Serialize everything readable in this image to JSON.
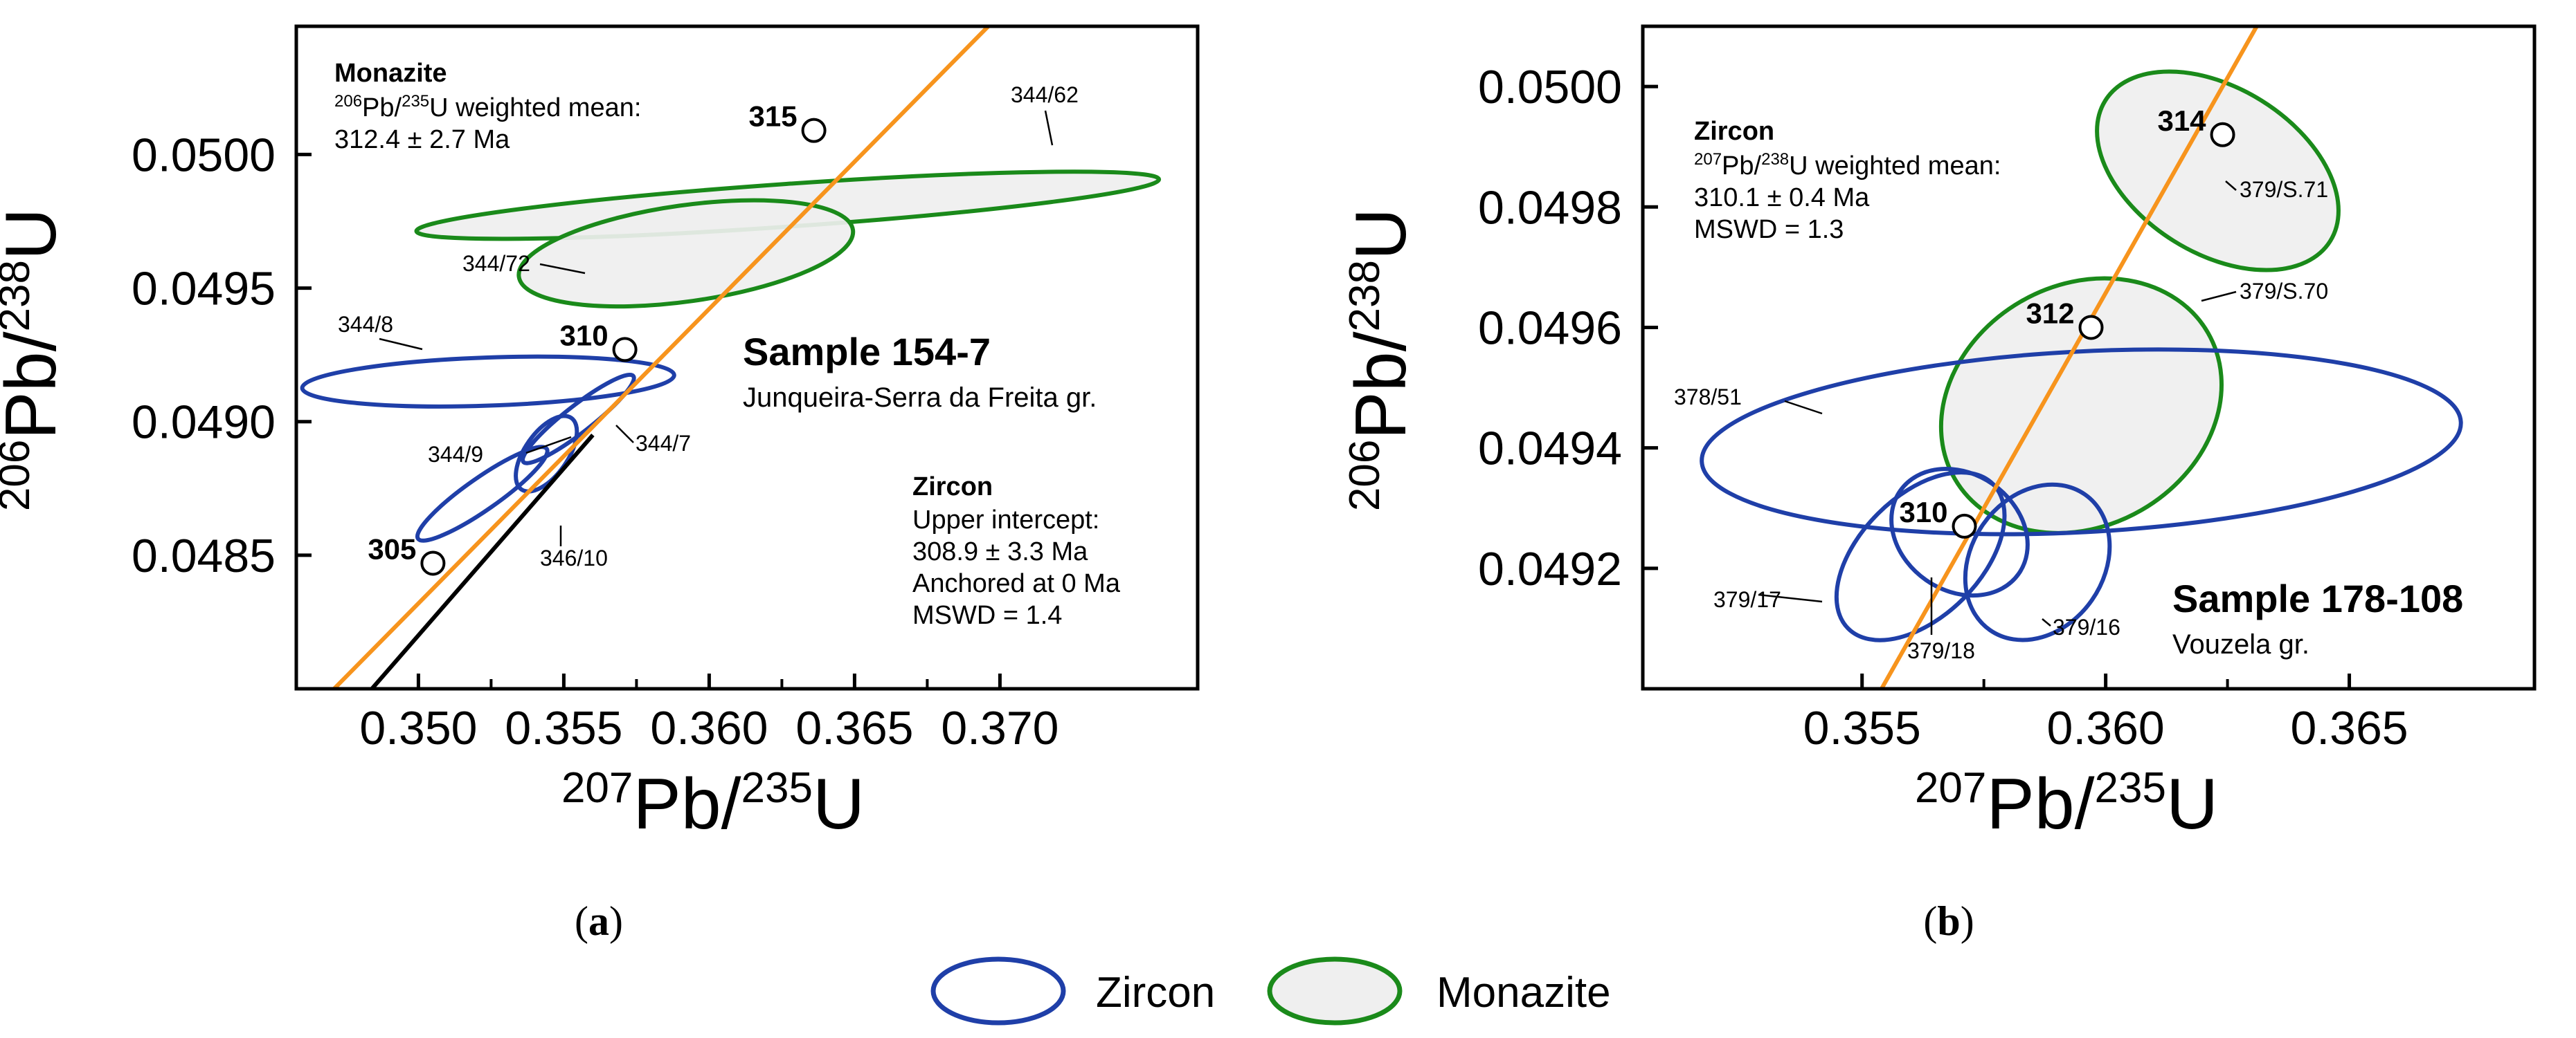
{
  "chart_data": [
    {
      "type": "scatter",
      "panel_label": "a",
      "sample": "Sample 154-7",
      "group": "Junqueira-Serra da Freita gr.",
      "xlabel": {
        "pre": "207",
        "base": "Pb/",
        "sup2": "235",
        "post": "U"
      },
      "ylabel": {
        "pre": "206",
        "base": "Pb/",
        "sup2": "238",
        "post": "U"
      },
      "xlim": [
        0.3458,
        0.3768
      ],
      "ylim": [
        0.048,
        0.05048
      ],
      "x_ticks": [
        0.35,
        0.355,
        0.36,
        0.365,
        0.37
      ],
      "x_tick_labels": [
        "0.350",
        "0.355",
        "0.360",
        "0.365",
        "0.370"
      ],
      "y_ticks": [
        0.0485,
        0.049,
        0.0495,
        0.05
      ],
      "y_tick_labels": [
        "0.0485",
        "0.0490",
        "0.0495",
        "0.0500"
      ],
      "concordia": {
        "color": "#f7941d",
        "points": [
          [
            0.3471,
            0.048
          ],
          [
            0.3696,
            0.05048
          ]
        ]
      },
      "discordia": {
        "color": "#000000",
        "points": [
          [
            0.3484,
            0.048
          ],
          [
            0.356,
            0.04895
          ]
        ]
      },
      "age_markers": [
        {
          "label": "315",
          "x": 0.3636,
          "y": 0.05009
        },
        {
          "label": "310",
          "x": 0.3571,
          "y": 0.04927
        },
        {
          "label": "305",
          "x": 0.3505,
          "y": 0.04847
        }
      ],
      "ellipses": [
        {
          "label": "344/62",
          "mineral": "Monazite",
          "cx": 0.3627,
          "cy": 0.04981,
          "rx": 0.0128,
          "ry": 8e-05,
          "rot": -4
        },
        {
          "label": "344/72",
          "mineral": "Monazite",
          "cx": 0.3592,
          "cy": 0.04963,
          "rx": 0.0058,
          "ry": 0.00018,
          "rot": -8
        },
        {
          "label": "344/8",
          "mineral": "Zircon",
          "cx": 0.3524,
          "cy": 0.04915,
          "rx": 0.0064,
          "ry": 9e-05,
          "rot": -2
        },
        {
          "label": "344/7",
          "mineral": "Zircon",
          "cx": 0.3555,
          "cy": 0.04901,
          "rx": 0.0024,
          "ry": 5e-05,
          "rot": -38
        },
        {
          "label": "344/9",
          "mineral": "Zircon",
          "cx": 0.3544,
          "cy": 0.04888,
          "rx": 0.0015,
          "ry": 8e-05,
          "rot": -55
        },
        {
          "label": "346/10",
          "mineral": "Zircon",
          "cx": 0.3522,
          "cy": 0.04873,
          "rx": 0.0027,
          "ry": 6e-05,
          "rot": -35
        }
      ],
      "annotations": {
        "monazite_title": "Monazite",
        "monazite_l1": {
          "pre": "206",
          "mid": "Pb/",
          "sup2": "235",
          "post": "U weighted mean:"
        },
        "monazite_l2": "312.4 ± 2.7 Ma",
        "zircon_title": "Zircon",
        "zircon_l1": "Upper intercept:",
        "zircon_l2": "308.9 ± 3.3 Ma",
        "zircon_l3": "Anchored at 0 Ma",
        "zircon_l4": "MSWD = 1.4"
      }
    },
    {
      "type": "scatter",
      "panel_label": "b",
      "sample": "Sample 178-108",
      "group": "Vouzela gr.",
      "xlabel": {
        "pre": "207",
        "base": "Pb/",
        "sup2": "235",
        "post": "U"
      },
      "ylabel": {
        "pre": "206",
        "base": "Pb/",
        "sup2": "238",
        "post": "U"
      },
      "xlim": [
        0.3505,
        0.3688
      ],
      "ylim": [
        0.049,
        0.0501
      ],
      "x_ticks": [
        0.355,
        0.36,
        0.365
      ],
      "x_tick_labels": [
        "0.355",
        "0.360",
        "0.365"
      ],
      "y_ticks": [
        0.0492,
        0.0494,
        0.0496,
        0.0498,
        0.05
      ],
      "y_tick_labels": [
        "0.0492",
        "0.0494",
        "0.0496",
        "0.0498",
        "0.0500"
      ],
      "concordia": {
        "color": "#f7941d",
        "points": [
          [
            0.3554,
            0.049
          ],
          [
            0.3631,
            0.0501
          ]
        ]
      },
      "age_markers": [
        {
          "label": "314",
          "x": 0.3624,
          "y": 0.04992
        },
        {
          "label": "312",
          "x": 0.3597,
          "y": 0.0496
        },
        {
          "label": "310",
          "x": 0.3571,
          "y": 0.04927
        }
      ],
      "ellipses": [
        {
          "label": "379/S.71",
          "mineral": "Monazite",
          "cx": 0.3623,
          "cy": 0.04986,
          "rx": 0.0017,
          "ry": 0.00022,
          "rot": -58
        },
        {
          "label": "379/S.70",
          "mineral": "Monazite",
          "cx": 0.3595,
          "cy": 0.04947,
          "rx": 0.003,
          "ry": 0.0002,
          "rot": -30
        },
        {
          "label": "378/51",
          "mineral": "Zircon",
          "cx": 0.3595,
          "cy": 0.04941,
          "rx": 0.0078,
          "ry": 0.00015,
          "rot": -3
        },
        {
          "label": "379/17",
          "mineral": "Zircon",
          "cx": 0.3562,
          "cy": 0.04922,
          "rx": 0.0021,
          "ry": 0.0001,
          "rot": -45
        },
        {
          "label": "379/18",
          "mineral": "Zircon",
          "cx": 0.357,
          "cy": 0.04926,
          "rx": 0.0012,
          "ry": 0.00012,
          "rot": -55
        },
        {
          "label": "379/16",
          "mineral": "Zircon",
          "cx": 0.3586,
          "cy": 0.04921,
          "rx": 0.0017,
          "ry": 0.00011,
          "rot": -55
        }
      ],
      "annotations": {
        "zircon_title": "Zircon",
        "zircon_l1": {
          "pre": "207",
          "mid": "Pb/",
          "sup2": "238",
          "post": "U weighted mean:"
        },
        "zircon_l2": "310.1 ± 0.4 Ma",
        "zircon_l3": "MSWD = 1.3"
      }
    }
  ],
  "legend": {
    "items": [
      {
        "label": "Zircon",
        "stroke": "#1f3fa8",
        "fill": "none"
      },
      {
        "label": "Monazite",
        "stroke": "#1a8a1a",
        "fill": "#efefef"
      }
    ]
  },
  "colors": {
    "zircon": "#1f3fa8",
    "monazite": "#1a8a1a",
    "monazite_fill": "#efefef",
    "concordia": "#f7941d",
    "discordia": "#000000"
  }
}
